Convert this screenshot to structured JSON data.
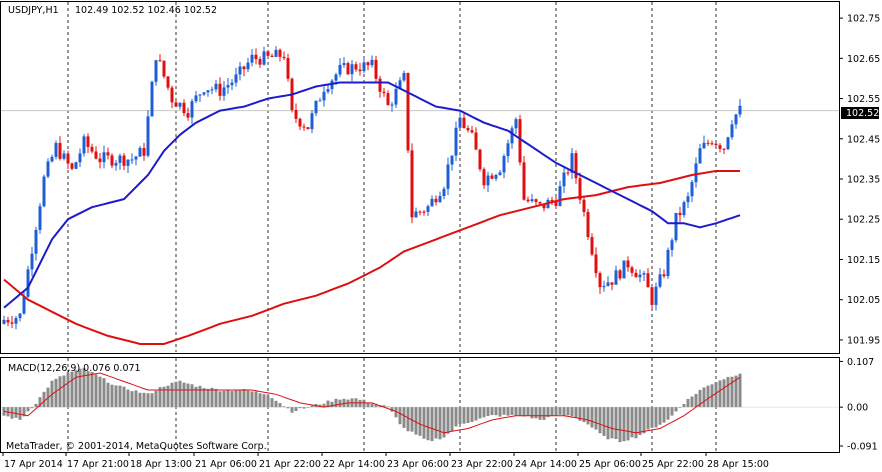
{
  "header": {
    "symbol": "USDJPY,H1",
    "ohlc": "102.49 102.52 102.46 102.52"
  },
  "subwindow": {
    "title": "MACD(12,26,9) 0.076 0.071"
  },
  "footer": {
    "copyright": "MetaTrader, © 2001-2014, MetaQuotes Software Corp."
  },
  "colors": {
    "background": "#ffffff",
    "bull_candle": "#1f5fd6",
    "bear_candle": "#e01010",
    "fast_ma": "#1c1ccc",
    "slow_ma": "#dd1010",
    "macd_hist": "#8a8a8a",
    "macd_signal": "#dd1010",
    "price_label_bg": "#000000"
  },
  "chart_data": {
    "type": "candlestick",
    "symbol": "USDJPY",
    "timeframe": "H1",
    "ylim": [
      101.92,
      102.79
    ],
    "y_ticks": [
      "102.75",
      "102.65",
      "102.55",
      "102.45",
      "102.35",
      "102.25",
      "102.15",
      "102.05",
      "101.95"
    ],
    "current_price": "102.52",
    "x_labels": [
      "17 Apr 2014",
      "17 Apr 21:00",
      "18 Apr 13:00",
      "21 Apr 06:00",
      "21 Apr 22:00",
      "22 Apr 14:00",
      "23 Apr 06:00",
      "23 Apr 22:00",
      "24 Apr 14:00",
      "25 Apr 06:00",
      "25 Apr 22:00",
      "28 Apr 15:00"
    ],
    "close_anchors": [
      [
        0,
        102.0
      ],
      [
        4,
        102.01
      ],
      [
        7,
        102.18
      ],
      [
        10,
        102.35
      ],
      [
        13,
        102.43
      ],
      [
        17,
        102.37
      ],
      [
        20,
        102.44
      ],
      [
        24,
        102.4
      ],
      [
        28,
        102.4
      ],
      [
        32,
        102.4
      ],
      [
        35,
        102.42
      ],
      [
        38,
        102.66
      ],
      [
        42,
        102.55
      ],
      [
        46,
        102.52
      ],
      [
        50,
        102.58
      ],
      [
        54,
        102.57
      ],
      [
        58,
        102.6
      ],
      [
        62,
        102.65
      ],
      [
        66,
        102.65
      ],
      [
        70,
        102.66
      ],
      [
        72,
        102.51
      ],
      [
        76,
        102.48
      ],
      [
        80,
        102.58
      ],
      [
        84,
        102.62
      ],
      [
        88,
        102.63
      ],
      [
        92,
        102.63
      ],
      [
        96,
        102.53
      ],
      [
        100,
        102.6
      ],
      [
        102,
        102.26
      ],
      [
        106,
        102.28
      ],
      [
        110,
        102.34
      ],
      [
        114,
        102.5
      ],
      [
        117,
        102.45
      ],
      [
        120,
        102.35
      ],
      [
        124,
        102.38
      ],
      [
        128,
        102.5
      ],
      [
        130,
        102.3
      ],
      [
        134,
        102.28
      ],
      [
        138,
        102.3
      ],
      [
        142,
        102.4
      ],
      [
        146,
        102.22
      ],
      [
        149,
        102.09
      ],
      [
        152,
        102.1
      ],
      [
        156,
        102.14
      ],
      [
        160,
        102.1
      ],
      [
        162,
        102.05
      ],
      [
        165,
        102.12
      ],
      [
        168,
        102.25
      ],
      [
        171,
        102.3
      ],
      [
        174,
        102.42
      ],
      [
        177,
        102.45
      ],
      [
        180,
        102.43
      ],
      [
        182,
        102.5
      ],
      [
        184,
        102.52
      ]
    ],
    "fast_ma": [
      [
        0,
        102.03
      ],
      [
        6,
        102.08
      ],
      [
        12,
        102.2
      ],
      [
        16,
        102.25
      ],
      [
        22,
        102.28
      ],
      [
        30,
        102.3
      ],
      [
        36,
        102.36
      ],
      [
        40,
        102.42
      ],
      [
        44,
        102.46
      ],
      [
        48,
        102.49
      ],
      [
        54,
        102.52
      ],
      [
        60,
        102.53
      ],
      [
        66,
        102.55
      ],
      [
        72,
        102.56
      ],
      [
        78,
        102.58
      ],
      [
        84,
        102.59
      ],
      [
        90,
        102.59
      ],
      [
        96,
        102.59
      ],
      [
        102,
        102.56
      ],
      [
        108,
        102.53
      ],
      [
        114,
        102.52
      ],
      [
        120,
        102.49
      ],
      [
        126,
        102.47
      ],
      [
        132,
        102.43
      ],
      [
        138,
        102.39
      ],
      [
        144,
        102.36
      ],
      [
        150,
        102.33
      ],
      [
        156,
        102.3
      ],
      [
        162,
        102.27
      ],
      [
        166,
        102.24
      ],
      [
        170,
        102.24
      ],
      [
        174,
        102.23
      ],
      [
        178,
        102.24
      ],
      [
        184,
        102.26
      ]
    ],
    "slow_ma": [
      [
        0,
        102.1
      ],
      [
        6,
        102.05
      ],
      [
        12,
        102.02
      ],
      [
        18,
        101.99
      ],
      [
        26,
        101.96
      ],
      [
        34,
        101.94
      ],
      [
        40,
        101.94
      ],
      [
        46,
        101.96
      ],
      [
        54,
        101.99
      ],
      [
        62,
        102.01
      ],
      [
        70,
        102.04
      ],
      [
        78,
        102.06
      ],
      [
        86,
        102.09
      ],
      [
        94,
        102.13
      ],
      [
        100,
        102.17
      ],
      [
        108,
        102.2
      ],
      [
        116,
        102.23
      ],
      [
        124,
        102.26
      ],
      [
        132,
        102.28
      ],
      [
        140,
        102.3
      ],
      [
        148,
        102.31
      ],
      [
        156,
        102.33
      ],
      [
        164,
        102.34
      ],
      [
        172,
        102.36
      ],
      [
        178,
        102.37
      ],
      [
        184,
        102.37
      ]
    ],
    "macd": {
      "title": "MACD(12,26,9) 0.076 0.071",
      "ylim": [
        -0.105,
        0.115
      ],
      "y_ticks": [
        "0.107",
        "0.00",
        "-0.091"
      ],
      "hist_anchors": [
        [
          0,
          -0.02
        ],
        [
          4,
          -0.03
        ],
        [
          8,
          0.01
        ],
        [
          12,
          0.06
        ],
        [
          16,
          0.08
        ],
        [
          20,
          0.09
        ],
        [
          24,
          0.07
        ],
        [
          28,
          0.05
        ],
        [
          32,
          0.04
        ],
        [
          36,
          0.03
        ],
        [
          40,
          0.05
        ],
        [
          44,
          0.06
        ],
        [
          48,
          0.05
        ],
        [
          54,
          0.04
        ],
        [
          60,
          0.04
        ],
        [
          66,
          0.03
        ],
        [
          72,
          -0.01
        ],
        [
          76,
          0.0
        ],
        [
          80,
          0.01
        ],
        [
          84,
          0.02
        ],
        [
          88,
          0.02
        ],
        [
          92,
          0.01
        ],
        [
          96,
          0.0
        ],
        [
          100,
          -0.05
        ],
        [
          106,
          -0.08
        ],
        [
          110,
          -0.07
        ],
        [
          114,
          -0.04
        ],
        [
          118,
          -0.03
        ],
        [
          122,
          -0.02
        ],
        [
          126,
          -0.02
        ],
        [
          130,
          -0.02
        ],
        [
          134,
          -0.03
        ],
        [
          138,
          -0.02
        ],
        [
          142,
          -0.02
        ],
        [
          146,
          -0.04
        ],
        [
          150,
          -0.07
        ],
        [
          154,
          -0.08
        ],
        [
          158,
          -0.07
        ],
        [
          162,
          -0.05
        ],
        [
          166,
          -0.03
        ],
        [
          170,
          0.01
        ],
        [
          174,
          0.04
        ],
        [
          178,
          0.06
        ],
        [
          184,
          0.08
        ]
      ],
      "signal_anchors": [
        [
          0,
          -0.01
        ],
        [
          6,
          -0.02
        ],
        [
          12,
          0.03
        ],
        [
          18,
          0.07
        ],
        [
          24,
          0.08
        ],
        [
          30,
          0.06
        ],
        [
          36,
          0.04
        ],
        [
          42,
          0.04
        ],
        [
          48,
          0.04
        ],
        [
          54,
          0.04
        ],
        [
          62,
          0.04
        ],
        [
          68,
          0.03
        ],
        [
          74,
          0.01
        ],
        [
          80,
          0.0
        ],
        [
          86,
          0.01
        ],
        [
          92,
          0.01
        ],
        [
          98,
          -0.01
        ],
        [
          104,
          -0.04
        ],
        [
          110,
          -0.06
        ],
        [
          116,
          -0.05
        ],
        [
          122,
          -0.03
        ],
        [
          128,
          -0.02
        ],
        [
          134,
          -0.02
        ],
        [
          140,
          -0.02
        ],
        [
          146,
          -0.03
        ],
        [
          152,
          -0.05
        ],
        [
          158,
          -0.06
        ],
        [
          164,
          -0.05
        ],
        [
          170,
          -0.02
        ],
        [
          176,
          0.02
        ],
        [
          184,
          0.07
        ]
      ]
    }
  }
}
